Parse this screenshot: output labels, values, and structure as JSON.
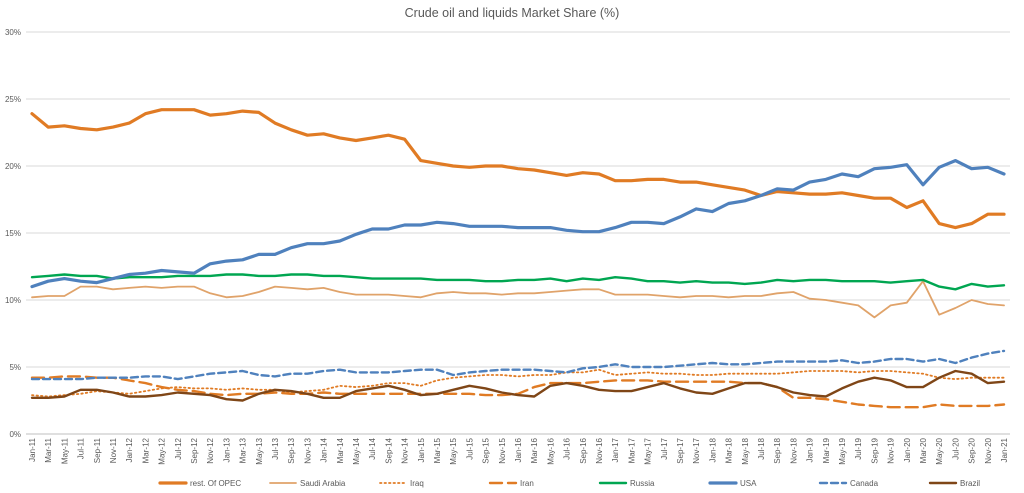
{
  "chart_data": {
    "type": "line",
    "title": "Crude oil and liquids Market Share (%)",
    "xlabel": "",
    "ylabel": "",
    "ylim": [
      0,
      30
    ],
    "yticks": [
      "0%",
      "5%",
      "10%",
      "15%",
      "20%",
      "25%",
      "30%"
    ],
    "grid": "horizontal",
    "legend_position": "bottom",
    "x_tick_labels": [
      "Jan-11",
      "Mar-11",
      "May-11",
      "Jul-11",
      "Sep-11",
      "Nov-11",
      "Jan-12",
      "Mar-12",
      "May-12",
      "Jul-12",
      "Sep-12",
      "Nov-12",
      "Jan-13",
      "Mar-13",
      "May-13",
      "Jul-13",
      "Sep-13",
      "Nov-13",
      "Jan-14",
      "Mar-14",
      "May-14",
      "Jul-14",
      "Sep-14",
      "Nov-14",
      "Jan-15",
      "Mar-15",
      "May-15",
      "Jul-15",
      "Sep-15",
      "Nov-15",
      "Jan-16",
      "Mar-16",
      "May-16",
      "Jul-16",
      "Sep-16",
      "Nov-16",
      "Jan-17",
      "Mar-17",
      "May-17",
      "Jul-17",
      "Sep-17",
      "Nov-17",
      "Jan-18",
      "Mar-18",
      "May-18",
      "Jul-18",
      "Sep-18",
      "Nov-18",
      "Jan-19",
      "Mar-19",
      "May-19",
      "Jul-19",
      "Sep-19",
      "Nov-19",
      "Jan-20",
      "Mar-20",
      "May-20",
      "Jul-20",
      "Sep-20",
      "Nov-20",
      "Jan-21"
    ],
    "series": [
      {
        "name": "rest. Of OPEC",
        "color": "#E07B24",
        "dash": "solid",
        "width": 3.2,
        "values": [
          23.9,
          22.9,
          23.0,
          22.8,
          22.7,
          22.9,
          23.2,
          23.9,
          24.2,
          24.2,
          24.2,
          23.8,
          23.9,
          24.1,
          24.0,
          23.2,
          22.7,
          22.3,
          22.4,
          22.1,
          21.9,
          22.1,
          22.3,
          22.0,
          20.4,
          20.2,
          20.0,
          19.9,
          20.0,
          20.0,
          19.8,
          19.7,
          19.5,
          19.3,
          19.5,
          19.4,
          18.9,
          18.9,
          19.0,
          19.0,
          18.8,
          18.8,
          18.6,
          18.4,
          18.2,
          17.8,
          18.1,
          18.0,
          17.9,
          17.9,
          18.0,
          17.8,
          17.6,
          17.6,
          16.9,
          17.4,
          15.7,
          15.4,
          15.7,
          16.4,
          16.4
        ]
      },
      {
        "name": "Saudi Arabia",
        "color": "#E0A36A",
        "dash": "solid",
        "width": 1.8,
        "values": [
          10.2,
          10.3,
          10.3,
          11.0,
          11.0,
          10.8,
          10.9,
          11.0,
          10.9,
          11.0,
          11.0,
          10.5,
          10.2,
          10.3,
          10.6,
          11.0,
          10.9,
          10.8,
          10.9,
          10.6,
          10.4,
          10.4,
          10.4,
          10.3,
          10.2,
          10.5,
          10.6,
          10.5,
          10.5,
          10.4,
          10.5,
          10.5,
          10.6,
          10.7,
          10.8,
          10.8,
          10.4,
          10.4,
          10.4,
          10.3,
          10.2,
          10.3,
          10.3,
          10.2,
          10.3,
          10.3,
          10.5,
          10.6,
          10.1,
          10.0,
          9.8,
          9.6,
          8.7,
          9.6,
          9.8,
          11.4,
          8.9,
          9.4,
          10.0,
          9.7,
          9.6
        ]
      },
      {
        "name": "Iraq",
        "color": "#E07B24",
        "dash": "dot",
        "width": 1.8,
        "values": [
          2.9,
          2.8,
          2.9,
          3.0,
          3.2,
          3.1,
          3.0,
          3.2,
          3.4,
          3.5,
          3.4,
          3.4,
          3.3,
          3.4,
          3.3,
          3.3,
          3.1,
          3.2,
          3.3,
          3.6,
          3.5,
          3.6,
          3.8,
          3.8,
          3.6,
          4.0,
          4.2,
          4.3,
          4.4,
          4.4,
          4.3,
          4.4,
          4.4,
          4.6,
          4.6,
          4.8,
          4.4,
          4.5,
          4.6,
          4.5,
          4.5,
          4.4,
          4.4,
          4.5,
          4.5,
          4.5,
          4.5,
          4.6,
          4.7,
          4.7,
          4.7,
          4.6,
          4.7,
          4.7,
          4.6,
          4.5,
          4.2,
          4.1,
          4.2,
          4.2,
          4.2
        ]
      },
      {
        "name": "Iran",
        "color": "#E07B24",
        "dash": "longdash",
        "width": 2.4,
        "values": [
          4.2,
          4.2,
          4.3,
          4.3,
          4.2,
          4.2,
          4.0,
          3.8,
          3.5,
          3.3,
          3.2,
          3.0,
          2.9,
          3.0,
          3.0,
          3.1,
          3.0,
          3.0,
          3.1,
          3.0,
          3.0,
          3.0,
          3.0,
          3.0,
          3.0,
          3.0,
          3.0,
          3.0,
          2.9,
          2.9,
          3.0,
          3.5,
          3.8,
          3.8,
          3.8,
          3.9,
          4.0,
          4.0,
          4.0,
          3.9,
          3.9,
          3.9,
          3.9,
          3.9,
          3.8,
          3.8,
          3.5,
          2.7,
          2.7,
          2.6,
          2.4,
          2.2,
          2.1,
          2.0,
          2.0,
          2.0,
          2.2,
          2.1,
          2.1,
          2.1,
          2.2
        ]
      },
      {
        "name": "Russia",
        "color": "#00A651",
        "dash": "solid",
        "width": 2.4,
        "values": [
          11.7,
          11.8,
          11.9,
          11.8,
          11.8,
          11.6,
          11.7,
          11.7,
          11.7,
          11.8,
          11.8,
          11.8,
          11.9,
          11.9,
          11.8,
          11.8,
          11.9,
          11.9,
          11.8,
          11.8,
          11.7,
          11.6,
          11.6,
          11.6,
          11.6,
          11.5,
          11.5,
          11.5,
          11.4,
          11.4,
          11.5,
          11.5,
          11.6,
          11.4,
          11.6,
          11.5,
          11.7,
          11.6,
          11.4,
          11.4,
          11.3,
          11.4,
          11.3,
          11.3,
          11.2,
          11.3,
          11.5,
          11.4,
          11.5,
          11.5,
          11.4,
          11.4,
          11.4,
          11.3,
          11.4,
          11.5,
          11.0,
          10.8,
          11.2,
          11.0,
          11.1
        ]
      },
      {
        "name": "USA",
        "color": "#4F81BD",
        "dash": "solid",
        "width": 3.2,
        "values": [
          11.0,
          11.4,
          11.6,
          11.4,
          11.3,
          11.6,
          11.9,
          12.0,
          12.2,
          12.1,
          12.0,
          12.7,
          12.9,
          13.0,
          13.4,
          13.4,
          13.9,
          14.2,
          14.2,
          14.4,
          14.9,
          15.3,
          15.3,
          15.6,
          15.6,
          15.8,
          15.7,
          15.5,
          15.5,
          15.5,
          15.4,
          15.4,
          15.4,
          15.2,
          15.1,
          15.1,
          15.4,
          15.8,
          15.8,
          15.7,
          16.2,
          16.8,
          16.6,
          17.2,
          17.4,
          17.8,
          18.3,
          18.2,
          18.8,
          19.0,
          19.4,
          19.2,
          19.8,
          19.9,
          20.1,
          18.6,
          19.9,
          20.4,
          19.8,
          19.9,
          19.4
        ]
      },
      {
        "name": "Canada",
        "color": "#4F81BD",
        "dash": "dash",
        "width": 2.4,
        "values": [
          4.1,
          4.1,
          4.1,
          4.1,
          4.2,
          4.2,
          4.2,
          4.3,
          4.3,
          4.1,
          4.3,
          4.5,
          4.6,
          4.7,
          4.4,
          4.3,
          4.5,
          4.5,
          4.7,
          4.8,
          4.6,
          4.6,
          4.6,
          4.7,
          4.8,
          4.8,
          4.4,
          4.6,
          4.7,
          4.8,
          4.8,
          4.8,
          4.7,
          4.6,
          4.9,
          5.0,
          5.2,
          5.0,
          5.0,
          5.0,
          5.1,
          5.2,
          5.3,
          5.2,
          5.2,
          5.3,
          5.4,
          5.4,
          5.4,
          5.4,
          5.5,
          5.3,
          5.4,
          5.6,
          5.6,
          5.4,
          5.6,
          5.3,
          5.7,
          6.0,
          6.2
        ]
      },
      {
        "name": "Brazil",
        "color": "#7F4617",
        "dash": "solid",
        "width": 2.4,
        "values": [
          2.7,
          2.7,
          2.8,
          3.3,
          3.3,
          3.1,
          2.8,
          2.8,
          2.9,
          3.1,
          3.0,
          2.9,
          2.6,
          2.5,
          3.0,
          3.3,
          3.2,
          3.0,
          2.7,
          2.7,
          3.2,
          3.4,
          3.6,
          3.3,
          2.9,
          3.0,
          3.3,
          3.6,
          3.4,
          3.1,
          2.9,
          2.8,
          3.6,
          3.8,
          3.6,
          3.3,
          3.2,
          3.2,
          3.5,
          3.8,
          3.4,
          3.1,
          3.0,
          3.4,
          3.8,
          3.8,
          3.5,
          3.1,
          2.9,
          2.8,
          3.4,
          3.9,
          4.2,
          4.0,
          3.5,
          3.5,
          4.2,
          4.7,
          4.5,
          3.8,
          3.9
        ]
      }
    ]
  }
}
